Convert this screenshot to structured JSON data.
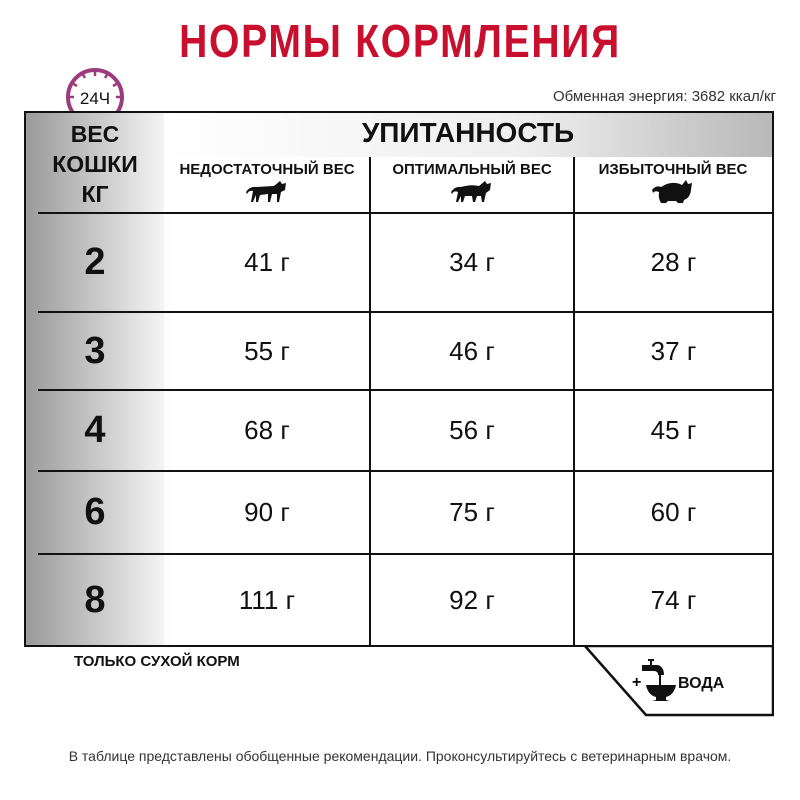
{
  "title": "НОРМЫ КОРМЛЕНИЯ",
  "clock_label": "24Ч",
  "energy": "Обменная энергия: 3682 ккал/кг",
  "table": {
    "weight_header": [
      "ВЕС",
      "КОШКИ",
      "КГ"
    ],
    "group_header": "УПИТАННОСТЬ",
    "columns": [
      "НЕДОСТАТОЧНЫЙ ВЕС",
      "ОПТИМАЛЬНЫЙ ВЕС",
      "ИЗБЫТОЧНЫЙ ВЕС"
    ],
    "rows": [
      {
        "kg": "2",
        "values": [
          "41 г",
          "34 г",
          "28 г"
        ]
      },
      {
        "kg": "3",
        "values": [
          "55 г",
          "46 г",
          "37 г"
        ]
      },
      {
        "kg": "4",
        "values": [
          "68 г",
          "56 г",
          "45 г"
        ]
      },
      {
        "kg": "6",
        "values": [
          "90 г",
          "75 г",
          "60 г"
        ]
      },
      {
        "kg": "8",
        "values": [
          "111 г",
          "92 г",
          "74 г"
        ]
      }
    ]
  },
  "dry_only": "ТОЛЬКО СУХОЙ КОРМ",
  "water": {
    "plus": "+",
    "label": "ВОДА"
  },
  "footnote": "В таблице представлены обобщенные рекомендации. Проконсультируйтесь с ветеринарным врачом.",
  "colors": {
    "brand": "#c8102e",
    "clock": "#9b3d7c"
  }
}
